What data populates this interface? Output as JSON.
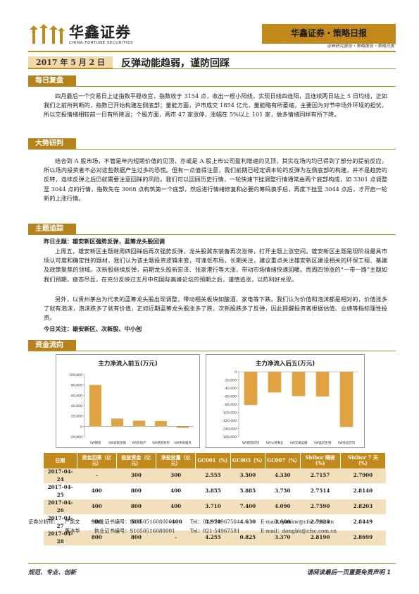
{
  "header": {
    "company_cn": "华鑫证券",
    "company_en": "CHINA FORTUNE SECURITIES",
    "report_type": "华鑫证券・策略日报",
    "report_sub": "证券研究报告・策略报告・策略日报"
  },
  "title": {
    "date": "2017 年 5 月 2 日",
    "headline": "反弹动能趋弱，谨防回踩"
  },
  "sections": {
    "daily": {
      "heading": "每日复盘",
      "text": "四月最后一个交易日上证指数平稳收官，指数收于 3154 点，收出一根小阳线，实现日线四连阳，且连续两日站上 5 日均线，正如我们之前所判断的，指数已开始构建左侧底部；量能方面，沪市成交 1854 亿元，量能略有所萎缩，主要因为对节中场外环境的担忧，所以交投情绪相较前一日有所降温；个股方面，两市 47 家涨停，涨幅在 5%以上 101 家，做多情绪同样有所下降。"
    },
    "trend": {
      "heading": "大势研判",
      "text": "结合到 A 股市场，不管是年内短期价值的见顶，亦或是 A 股上市公司盈利增速的见顶，其实在场内均已得到了部分的提前反应，所以场内投资者不必对这些数据产生过多的恐慌。但有一点值得注意，我们前期已经定调本轮的反弹为左侧底部的构建，并不是趋势的反转，连续反弹之后仍就需要注意回踩的风险。我们可以回顾历史行情，一轮快速下挫调整行情通常由两个底部构成，如 3301 点调整至 3044 点的行情，指数先在 3068 点构筑第一个底部，然后进行情绪修复和必要的筹码换手后，再度下挫至 3044 点后，才开启一轮新的上涨行情。"
    },
    "theme": {
      "heading": "主题追踪",
      "yesterday_label": "昨日主题：雄安新区强势反弹，蓝筹龙头股回调",
      "para1": "上周五，雄安新区主题继周四回踩后再次强势反弹，龙头股冀东装备再次涨停，打开主题上涨空间。雄安新区主题是现阶段最具市场认可度和确定性的题材，我们认为该主题投资逻辑未变，可逢低布局，长期关注，建议重点关注雄安新区建设相关的环保工程、基建及政策聚焦的领域。次新股继续反弹，前期龙头股新宏泽、张家港行等大涨，带动市场情绪快速回暖。而周四领涨的“一带一路”主题如我们预期，疲态尽显，在充分反映过五月中旬国际高峰论坛的预期之后，谨慎追涨，以防利好兑现。",
      "para2": "另外，以贵州茅台为代表的蓝筹龙头股出现调整，带动相关板块如酿酒、家电等下跌。我们认为价值和泡沫都是相对的，价值涨多了就有泡沫，泡沫跌多了就有价值，正如近期蓝筹龙头股涨多了跌，次新股跌多了反弹，因此提醒投资者根据估值、业绩等指标理性投资。",
      "today_label": "今日关注：雄安新区、次新股、中小创"
    },
    "funds": {
      "heading": "资金流向"
    }
  },
  "charts": {
    "top5_in": {
      "title": "主力净流入前五(万元)",
      "y_ticks": [
        "100,000",
        "80,000",
        "60,000",
        "40,000",
        "20,000",
        "0",
        "-20,000"
      ],
      "categories": [
        "SW钢铁",
        "SW非银金融",
        "SW房地产",
        "SW建筑材料",
        "SW休闲服务"
      ]
    },
    "top5_out": {
      "title": "主力净流入后五(万元)",
      "y_ticks": [
        "0",
        "-20,000",
        "-40,000",
        "-60,000",
        "-80,000",
        "-100,000",
        "-120,000",
        "-140,000",
        "-160,000"
      ],
      "categories": [
        "SW建筑装饰",
        "SW公用事业",
        "SW交通运输",
        "SW医药生物",
        "SW食品饮料"
      ]
    }
  },
  "chart_data": [
    {
      "type": "bar",
      "title": "主力净流入前五(万元)",
      "categories": [
        "SW钢铁",
        "SW非银金融",
        "SW房地产",
        "SW建筑材料",
        "SW休闲服务"
      ],
      "values": [
        80000,
        15000,
        11000,
        10000,
        -3000
      ],
      "ylim": [
        -20000,
        100000
      ],
      "grid": false
    },
    {
      "type": "bar",
      "title": "主力净流入后五(万元)",
      "categories": [
        "SW建筑装饰",
        "SW公用事业",
        "SW交通运输",
        "SW医药生物",
        "SW食品饮料"
      ],
      "values": [
        -82000,
        -51000,
        -60000,
        -61000,
        -136000
      ],
      "ylim": [
        -160000,
        0
      ],
      "grid": false
    }
  ],
  "table": {
    "headers": [
      "日期",
      "资金回笼（亿元）",
      "投放资金（亿元）",
      "净投放量（亿元）",
      "GC001（%）",
      "GC003（%）",
      "GC007（%）",
      "Shibor 隔夜(%)",
      "Shibor 7 天（%）"
    ],
    "rows": [
      [
        "2017-04-24",
        "-",
        "300",
        "300",
        "2.555",
        "3.500",
        "4.330",
        "2.7157",
        "2.7900"
      ],
      [
        "2017-04-25",
        "400",
        "800",
        "400",
        "3.855",
        "5.885",
        "3.750",
        "2.7514",
        "2.8140"
      ],
      [
        "2017-04-26",
        "400",
        "800",
        "400",
        "3.710",
        "7.400",
        "4.090",
        "2.7590",
        "2.8203"
      ],
      [
        "2017-04-27",
        "900",
        "500",
        "-400",
        "3.970",
        "4.630",
        "3.600",
        "2.7920",
        "2.8449"
      ],
      [
        "2017-04-28",
        "800",
        "800",
        "-",
        "4.255",
        "0.825",
        "3.370",
        "2.8190",
        "2.8699"
      ]
    ]
  },
  "analysts": {
    "label": "证券分析师：",
    "people": [
      {
        "name": "严凯文",
        "cert": "执业证书编号：S1050516080001",
        "tel": "Tel：021-54967584",
        "email": "E-mail：yankw@cfsc.com.cn"
      },
      {
        "name": "董冰华",
        "cert": "执业证书编号：S1050516080001",
        "tel": "Tel：021-54967581",
        "email": "E-mail：dongbh@cfsc.com.cn"
      }
    ]
  },
  "footer": {
    "left": "规范、专业、创新",
    "right": "请阅读最后一页重要免责声明 1"
  }
}
